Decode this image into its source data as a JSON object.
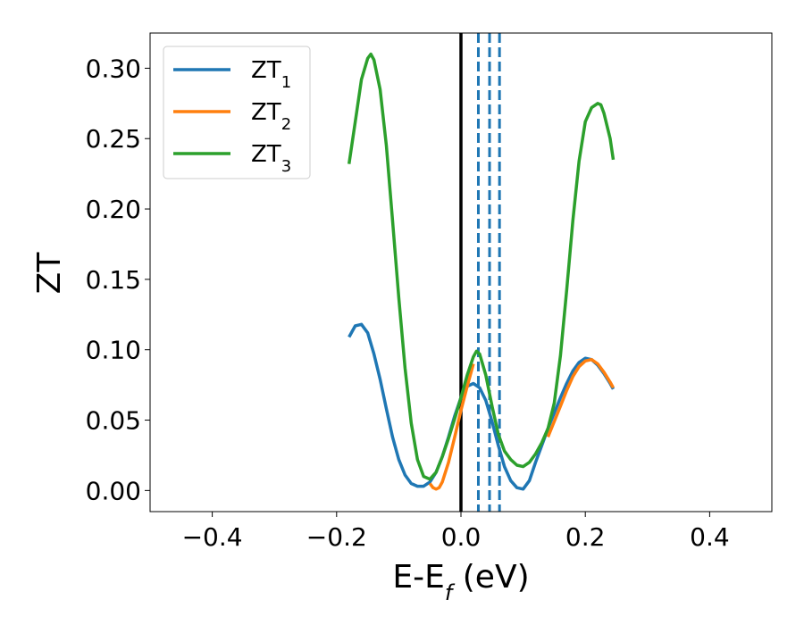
{
  "chart_data": {
    "type": "line",
    "title": "",
    "xlabel": {
      "main": "E-E",
      "sub": "f",
      "suffix": " (eV)"
    },
    "ylabel": "ZT",
    "xlim": [
      -0.5,
      0.5
    ],
    "ylim": [
      -0.015,
      0.325
    ],
    "xticks": [
      -0.4,
      -0.2,
      0.0,
      0.2,
      0.4
    ],
    "xtick_labels": [
      "−0.4",
      "−0.2",
      "0.0",
      "0.2",
      "0.4"
    ],
    "yticks": [
      0.0,
      0.05,
      0.1,
      0.15,
      0.2,
      0.25,
      0.3
    ],
    "ytick_labels": [
      "0.00",
      "0.05",
      "0.10",
      "0.15",
      "0.20",
      "0.25",
      "0.30"
    ],
    "grid": false,
    "legend_position": "top-left",
    "series": [
      {
        "name": "ZT",
        "name_sub": "1",
        "color": "#1f77b4",
        "x": [
          -0.18,
          -0.17,
          -0.16,
          -0.15,
          -0.14,
          -0.13,
          -0.12,
          -0.11,
          -0.1,
          -0.09,
          -0.08,
          -0.07,
          -0.06,
          -0.05,
          -0.04,
          -0.03,
          -0.02,
          -0.01,
          0.0,
          0.01,
          0.02,
          0.03,
          0.04,
          0.05,
          0.06,
          0.07,
          0.08,
          0.09,
          0.1,
          0.11,
          0.12,
          0.13,
          0.14,
          0.15,
          0.16,
          0.17,
          0.18,
          0.19,
          0.2,
          0.21,
          0.22,
          0.23,
          0.24,
          0.245
        ],
        "y": [
          0.109,
          0.117,
          0.118,
          0.112,
          0.097,
          0.079,
          0.058,
          0.038,
          0.022,
          0.011,
          0.005,
          0.003,
          0.003,
          0.006,
          0.013,
          0.024,
          0.038,
          0.053,
          0.066,
          0.074,
          0.076,
          0.073,
          0.064,
          0.049,
          0.032,
          0.017,
          0.007,
          0.002,
          0.001,
          0.007,
          0.02,
          0.032,
          0.044,
          0.055,
          0.066,
          0.076,
          0.085,
          0.091,
          0.094,
          0.093,
          0.089,
          0.083,
          0.076,
          0.072
        ]
      },
      {
        "name": "ZT",
        "name_sub": "2",
        "color": "#ff7f0e",
        "x": [
          -0.05,
          -0.045,
          -0.04,
          -0.035,
          -0.03,
          -0.02,
          -0.01,
          0.0,
          0.01,
          0.02,
          0.14,
          0.15,
          0.16,
          0.17,
          0.18,
          0.19,
          0.2,
          0.21,
          0.22,
          0.23,
          0.24,
          0.245
        ],
        "y": [
          0.005,
          0.002,
          0.001,
          0.002,
          0.006,
          0.02,
          0.038,
          0.057,
          0.074,
          0.09,
          0.038,
          0.049,
          0.06,
          0.071,
          0.081,
          0.088,
          0.092,
          0.093,
          0.09,
          0.084,
          0.077,
          0.073
        ]
      },
      {
        "name": "ZT",
        "name_sub": "3",
        "color": "#2ca02c",
        "x": [
          -0.18,
          -0.17,
          -0.16,
          -0.15,
          -0.145,
          -0.14,
          -0.13,
          -0.12,
          -0.11,
          -0.1,
          -0.09,
          -0.08,
          -0.07,
          -0.06,
          -0.05,
          -0.04,
          -0.03,
          -0.02,
          -0.01,
          0.0,
          0.01,
          0.02,
          0.025,
          0.03,
          0.04,
          0.05,
          0.06,
          0.07,
          0.08,
          0.09,
          0.1,
          0.11,
          0.12,
          0.13,
          0.14,
          0.15,
          0.16,
          0.17,
          0.18,
          0.19,
          0.2,
          0.21,
          0.22,
          0.225,
          0.23,
          0.24,
          0.245
        ],
        "y": [
          0.232,
          0.262,
          0.292,
          0.307,
          0.31,
          0.306,
          0.285,
          0.245,
          0.192,
          0.137,
          0.087,
          0.048,
          0.022,
          0.01,
          0.008,
          0.013,
          0.024,
          0.037,
          0.051,
          0.066,
          0.082,
          0.095,
          0.099,
          0.097,
          0.082,
          0.06,
          0.04,
          0.028,
          0.022,
          0.018,
          0.017,
          0.02,
          0.026,
          0.034,
          0.044,
          0.062,
          0.096,
          0.142,
          0.192,
          0.234,
          0.262,
          0.272,
          0.275,
          0.274,
          0.268,
          0.25,
          0.235
        ]
      }
    ],
    "vertical_lines": [
      {
        "x": 0.0,
        "color": "#000000",
        "style": "solid"
      },
      {
        "x": 0.028,
        "color": "#1f77b4",
        "style": "dashed"
      },
      {
        "x": 0.046,
        "color": "#1f77b4",
        "style": "dashed"
      },
      {
        "x": 0.062,
        "color": "#1f77b4",
        "style": "dashed"
      }
    ]
  }
}
